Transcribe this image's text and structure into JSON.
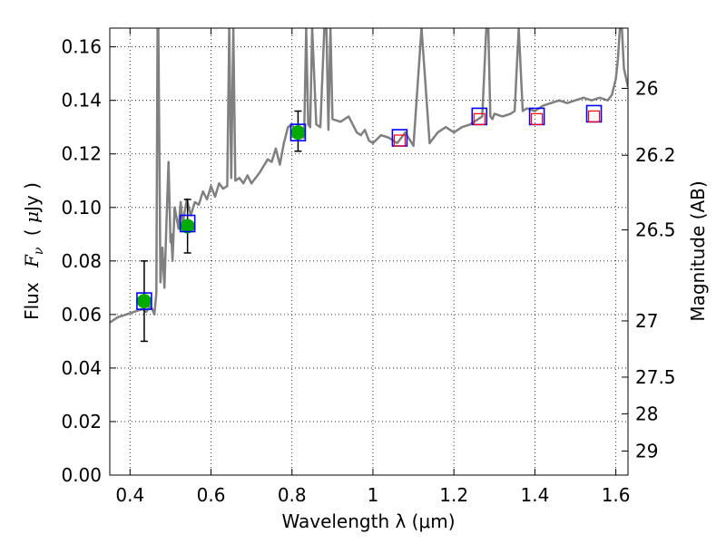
{
  "chart_data": {
    "type": "scatter",
    "xlabel": "Wavelength  λ (μm)",
    "ylabel": "Flux  F_ν  ( μJy )",
    "ylabel_right": "Magnitude (AB)",
    "xlim": [
      0.35,
      1.63
    ],
    "ylim": [
      0.0,
      0.167
    ],
    "grid": true,
    "x_ticks": [
      0.4,
      0.6,
      0.8,
      1.0,
      1.2,
      1.4,
      1.6
    ],
    "x_tick_labels": [
      "0.4",
      "0.6",
      "0.8",
      "1",
      "1.2",
      "1.4",
      "1.6"
    ],
    "y_ticks": [
      0.0,
      0.02,
      0.04,
      0.06,
      0.08,
      0.1,
      0.12,
      0.14,
      0.16
    ],
    "y_tick_labels": [
      "0.00",
      "0.02",
      "0.04",
      "0.06",
      "0.08",
      "0.10",
      "0.12",
      "0.14",
      "0.16"
    ],
    "right_ticks": [
      {
        "flux": 0.1445,
        "label": "26"
      },
      {
        "flux": 0.1195,
        "label": "26.2"
      },
      {
        "flux": 0.0916,
        "label": "26.5"
      },
      {
        "flux": 0.0576,
        "label": "27"
      },
      {
        "flux": 0.0366,
        "label": "27.5"
      },
      {
        "flux": 0.0229,
        "label": "28"
      },
      {
        "flux": 0.009,
        "label": "29"
      }
    ],
    "colors": {
      "spectrum": "#808080",
      "observed": "#00aa00",
      "model_box": "#0000ff",
      "upper_box": "#ff0000",
      "error_bar": "#000000"
    },
    "spectrum": {
      "name": "",
      "x": [
        0.35,
        0.37,
        0.39,
        0.41,
        0.43,
        0.44,
        0.45,
        0.455,
        0.46,
        0.465,
        0.468,
        0.47,
        0.475,
        0.48,
        0.485,
        0.49,
        0.495,
        0.5,
        0.502,
        0.505,
        0.51,
        0.52,
        0.525,
        0.53,
        0.54,
        0.55,
        0.56,
        0.57,
        0.58,
        0.59,
        0.6,
        0.61,
        0.62,
        0.63,
        0.64,
        0.645,
        0.65,
        0.655,
        0.66,
        0.67,
        0.68,
        0.69,
        0.7,
        0.72,
        0.74,
        0.75,
        0.76,
        0.77,
        0.78,
        0.79,
        0.8,
        0.81,
        0.82,
        0.83,
        0.835,
        0.84,
        0.845,
        0.85,
        0.86,
        0.87,
        0.88,
        0.885,
        0.89,
        0.895,
        0.9,
        0.92,
        0.94,
        0.95,
        0.96,
        0.97,
        0.98,
        0.99,
        1.0,
        1.02,
        1.04,
        1.06,
        1.08,
        1.1,
        1.12,
        1.14,
        1.16,
        1.18,
        1.2,
        1.22,
        1.24,
        1.25,
        1.26,
        1.27,
        1.28,
        1.285,
        1.29,
        1.295,
        1.3,
        1.32,
        1.34,
        1.35,
        1.36,
        1.37,
        1.38,
        1.4,
        1.42,
        1.44,
        1.46,
        1.48,
        1.5,
        1.52,
        1.54,
        1.56,
        1.58,
        1.59,
        1.6,
        1.605,
        1.61,
        1.615,
        1.62,
        1.63
      ],
      "values": [
        0.057,
        0.059,
        0.06,
        0.061,
        0.062,
        0.061,
        0.063,
        0.062,
        0.06,
        0.068,
        0.167,
        0.167,
        0.072,
        0.085,
        0.07,
        0.095,
        0.117,
        0.087,
        0.09,
        0.08,
        0.1,
        0.092,
        0.102,
        0.094,
        0.103,
        0.097,
        0.102,
        0.101,
        0.106,
        0.103,
        0.108,
        0.104,
        0.109,
        0.107,
        0.108,
        0.167,
        0.111,
        0.167,
        0.11,
        0.111,
        0.109,
        0.112,
        0.109,
        0.113,
        0.118,
        0.117,
        0.122,
        0.116,
        0.124,
        0.13,
        0.131,
        0.128,
        0.129,
        0.126,
        0.167,
        0.131,
        0.13,
        0.167,
        0.131,
        0.13,
        0.167,
        0.167,
        0.129,
        0.167,
        0.133,
        0.132,
        0.134,
        0.131,
        0.128,
        0.127,
        0.129,
        0.125,
        0.124,
        0.127,
        0.126,
        0.124,
        0.128,
        0.123,
        0.167,
        0.124,
        0.128,
        0.13,
        0.128,
        0.13,
        0.131,
        0.132,
        0.133,
        0.134,
        0.167,
        0.167,
        0.134,
        0.133,
        0.135,
        0.134,
        0.135,
        0.136,
        0.167,
        0.136,
        0.137,
        0.136,
        0.138,
        0.139,
        0.14,
        0.139,
        0.14,
        0.141,
        0.14,
        0.141,
        0.14,
        0.142,
        0.148,
        0.155,
        0.167,
        0.167,
        0.152,
        0.145
      ]
    },
    "observed": {
      "name": "",
      "x": [
        0.435,
        0.542,
        0.815
      ],
      "y": [
        0.065,
        0.093,
        0.128
      ],
      "yerr_low": [
        0.015,
        0.01,
        0.007
      ],
      "yerr_high": [
        0.015,
        0.01,
        0.008
      ]
    },
    "model_photometry": {
      "name": "",
      "x": [
        0.435,
        0.542,
        0.815,
        1.066,
        1.263,
        1.405,
        1.546
      ],
      "y": [
        0.065,
        0.094,
        0.128,
        0.126,
        0.134,
        0.134,
        0.135
      ]
    },
    "upper_limits": {
      "name": "",
      "x": [
        1.066,
        1.263,
        1.405,
        1.546
      ],
      "y": [
        0.125,
        0.133,
        0.133,
        0.134
      ]
    }
  }
}
